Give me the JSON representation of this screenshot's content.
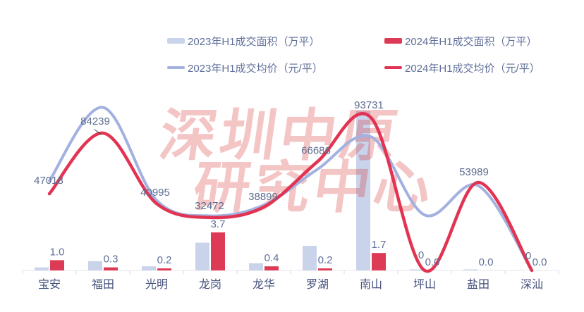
{
  "watermark": {
    "line1": "深圳中原",
    "line2": "研究中心",
    "color": "rgba(215,40,40,0.27)"
  },
  "legend": {
    "items": [
      {
        "id": "area-2023",
        "label": "2023年H1成交面积（万平）",
        "swatch": "bar",
        "color": "#c9d4eb"
      },
      {
        "id": "area-2024",
        "label": "2024年H1成交面积（万平）",
        "swatch": "bar",
        "color": "#dd3b55"
      },
      {
        "id": "price-2023",
        "label": "2023年H1成交均价（元/平）",
        "swatch": "line",
        "color": "#a3b1e0"
      },
      {
        "id": "price-2024",
        "label": "2024年H1成交均价（元/平）",
        "swatch": "line",
        "color": "#e23352"
      }
    ]
  },
  "chart_data": {
    "type": "combo bar+line (dual hidden axes)",
    "categories": [
      "宝安",
      "福田",
      "光明",
      "龙岗",
      "龙华",
      "罗湖",
      "南山",
      "坪山",
      "盐田",
      "深汕"
    ],
    "series": [
      {
        "name": "2023年H1成交面积（万平）",
        "type": "bar",
        "color": "#c9d4eb",
        "values": [
          0.3,
          0.9,
          0.4,
          2.7,
          0.7,
          2.4,
          15.5,
          0.1,
          0.1,
          0
        ],
        "labels_shown": false,
        "note": "bars unlabeled in chart; values estimated from bar heights"
      },
      {
        "name": "2024年H1成交面积（万平）",
        "type": "bar",
        "color": "#dd3b55",
        "values": [
          1.0,
          0.3,
          0.2,
          3.7,
          0.4,
          0.2,
          1.7,
          0.0,
          0.0,
          0.0
        ],
        "labels_shown": true,
        "data_labels": [
          "1.0",
          "0.3",
          "0.2",
          "3.7",
          "0.4",
          "0.2",
          "1.7",
          "0.0",
          "0.0",
          "0.0"
        ]
      },
      {
        "name": "2023年H1成交均价（元/平）",
        "type": "line",
        "color": "#a3b1e0",
        "values": [
          55000,
          100000,
          43000,
          33500,
          40000,
          62000,
          82000,
          34000,
          52000,
          0
        ],
        "labels_shown": false,
        "note": "line unlabeled in chart; values estimated from curve position"
      },
      {
        "name": "2024年H1成交均价（元/平）",
        "type": "line",
        "color": "#e23352",
        "values": [
          47018,
          84239,
          40995,
          32472,
          38899,
          66686,
          93731,
          0,
          53989,
          0
        ],
        "labels_shown": true,
        "data_labels": [
          "47018",
          "84239",
          "40995",
          "32472",
          "38899",
          "66686",
          "93731",
          "0",
          "53989",
          "0"
        ]
      }
    ],
    "styles": {
      "value_label_color": "#5e6d90",
      "bar_label_color": "#61709a",
      "axis_label_color": "#44517b",
      "axis_line_color": "#e7e7ec",
      "tick_color": "#d9d9e2",
      "leader_line_color": "#444444"
    },
    "layout_hints": {
      "grid": false,
      "y_axes_hidden": true,
      "legend_position": "top"
    }
  }
}
